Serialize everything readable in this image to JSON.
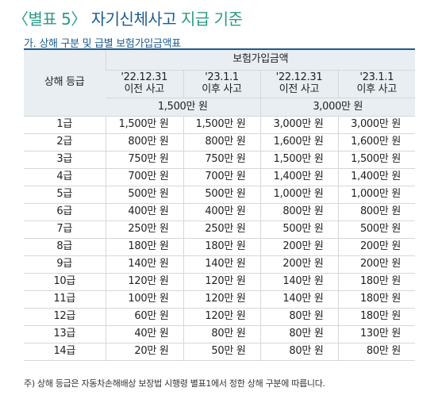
{
  "title": {
    "bracket_label": "〈별표 5〉",
    "main": "자기신체사고",
    "suffix": "지급 기준"
  },
  "subtitle": "가. 상해 구분 및 급별 보험가입금액표",
  "table": {
    "header": {
      "grade_col": "상해 등급",
      "amount_group": "보험가입금액",
      "periods": [
        {
          "line1": "'22.12.31",
          "line2": "이전 사고"
        },
        {
          "line1": "'23.1.1",
          "line2": "이후 사고"
        },
        {
          "line1": "'22.12.31",
          "line2": "이전 사고"
        },
        {
          "line1": "'23.1.1",
          "line2": "이후 사고"
        }
      ],
      "amount_tiers": [
        "1,500만 원",
        "3,000만 원"
      ]
    },
    "rows": [
      {
        "grade": "1급",
        "values": [
          "1,500만 원",
          "1,500만 원",
          "3,000만 원",
          "3,000만 원"
        ]
      },
      {
        "grade": "2급",
        "values": [
          "800만 원",
          "800만 원",
          "1,600만 원",
          "1,600만 원"
        ]
      },
      {
        "grade": "3급",
        "values": [
          "750만 원",
          "750만 원",
          "1,500만 원",
          "1,500만 원"
        ]
      },
      {
        "grade": "4급",
        "values": [
          "700만 원",
          "700만 원",
          "1,400만 원",
          "1,400만 원"
        ]
      },
      {
        "grade": "5급",
        "values": [
          "500만 원",
          "500만 원",
          "1,000만 원",
          "1,000만 원"
        ]
      },
      {
        "grade": "6급",
        "values": [
          "400만 원",
          "400만 원",
          "800만 원",
          "800만 원"
        ]
      },
      {
        "grade": "7급",
        "values": [
          "250만 원",
          "250만 원",
          "500만 원",
          "500만 원"
        ]
      },
      {
        "grade": "8급",
        "values": [
          "180만 원",
          "180만 원",
          "200만 원",
          "200만 원"
        ]
      },
      {
        "grade": "9급",
        "values": [
          "140만 원",
          "140만 원",
          "200만 원",
          "200만 원"
        ]
      },
      {
        "grade": "10급",
        "values": [
          "120만 원",
          "120만 원",
          "140만 원",
          "180만 원"
        ]
      },
      {
        "grade": "11급",
        "values": [
          "100만 원",
          "120만 원",
          "140만 원",
          "180만 원"
        ]
      },
      {
        "grade": "12급",
        "values": [
          "60만 원",
          "120만 원",
          "80만 원",
          "180만 원"
        ]
      },
      {
        "grade": "13급",
        "values": [
          "40만 원",
          "80만 원",
          "80만 원",
          "130만 원"
        ]
      },
      {
        "grade": "14급",
        "values": [
          "20만 원",
          "50만 원",
          "80만 원",
          "80만 원"
        ]
      }
    ]
  },
  "note": "주) 상해 등급은 자동차손해배상 보장법 시행령 별표1에서 정한 상해 구분에 따릅니다.",
  "colors": {
    "accent_teal": "#2b9a86",
    "accent_navy": "#1c5b8f",
    "header_bg": "#e8eef1",
    "grid": "#d3d8dc"
  }
}
